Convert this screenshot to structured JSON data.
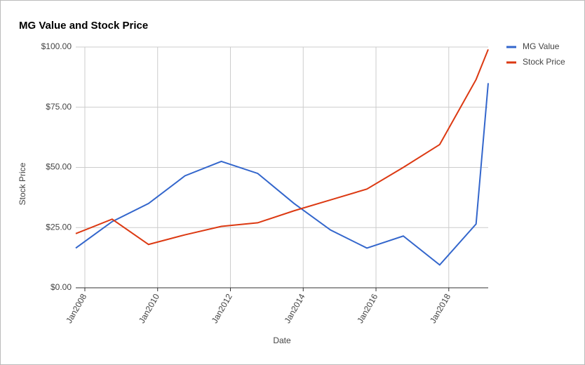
{
  "chart_data": {
    "type": "line",
    "title": "MG Value and Stock Price",
    "x_label": "Date",
    "y_label": "Stock Price",
    "x": [
      "2007-10",
      "2008-10",
      "2009-10",
      "2010-10",
      "2011-10",
      "2012-10",
      "2013-10",
      "2014-10",
      "2015-10",
      "2016-10",
      "2017-10",
      "2018-10",
      "2019-02"
    ],
    "series": [
      {
        "name": "MG Value",
        "color": "#3366cc",
        "values": [
          16.5,
          27.5,
          35,
          46.5,
          52.5,
          47.5,
          35,
          24,
          16.5,
          21.5,
          9.5,
          26.5,
          85
        ]
      },
      {
        "name": "Stock Price",
        "color": "#dc3912",
        "values": [
          22.5,
          28.5,
          18,
          22,
          25.5,
          27,
          32,
          36.5,
          41,
          50,
          59.5,
          86.5,
          99
        ]
      }
    ],
    "xlim": [
      "2007-10",
      "2019-02"
    ],
    "xticks": [
      {
        "value": "2008-01",
        "label": "Jan2008"
      },
      {
        "value": "2010-01",
        "label": "Jan2010"
      },
      {
        "value": "2012-01",
        "label": "Jan2012"
      },
      {
        "value": "2014-01",
        "label": "Jan2014"
      },
      {
        "value": "2016-01",
        "label": "Jan2016"
      },
      {
        "value": "2018-01",
        "label": "Jan2018"
      }
    ],
    "ylim": [
      0,
      100
    ],
    "yticks": [
      {
        "value": 0,
        "label": "$0.00"
      },
      {
        "value": 25,
        "label": "$25.00"
      },
      {
        "value": 50,
        "label": "$50.00"
      },
      {
        "value": 75,
        "label": "$75.00"
      },
      {
        "value": 100,
        "label": "$100.00"
      }
    ],
    "grid": true,
    "legend": "right"
  }
}
